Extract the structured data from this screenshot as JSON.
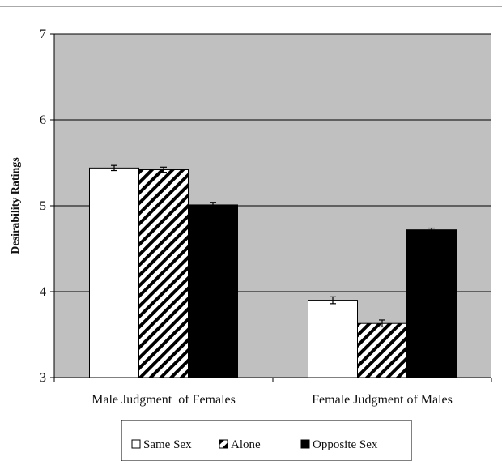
{
  "chart_data": {
    "type": "bar",
    "title": "",
    "xlabel": "",
    "ylabel": "Desirability Ratings",
    "ylim": [
      3,
      7
    ],
    "yticks": [
      3,
      4,
      5,
      6,
      7
    ],
    "grid": true,
    "legend_position": "bottom",
    "categories": [
      "Male Judgment  of Females",
      "Female Judgment of Males"
    ],
    "series": [
      {
        "name": "Same Sex",
        "values": [
          5.44,
          3.9
        ],
        "errors": [
          0.03,
          0.04
        ],
        "fill": "white"
      },
      {
        "name": "Alone",
        "values": [
          5.42,
          3.63
        ],
        "errors": [
          0.03,
          0.04
        ],
        "fill": "hatch"
      },
      {
        "name": "Opposite Sex",
        "values": [
          5.01,
          4.72
        ],
        "errors": [
          0.03,
          0.02
        ],
        "fill": "black"
      }
    ],
    "colors": {
      "plot_background": "#c0c0c0",
      "bar_outline": "#000000",
      "solid_bar": "#000000",
      "open_bar": "#ffffff"
    }
  }
}
